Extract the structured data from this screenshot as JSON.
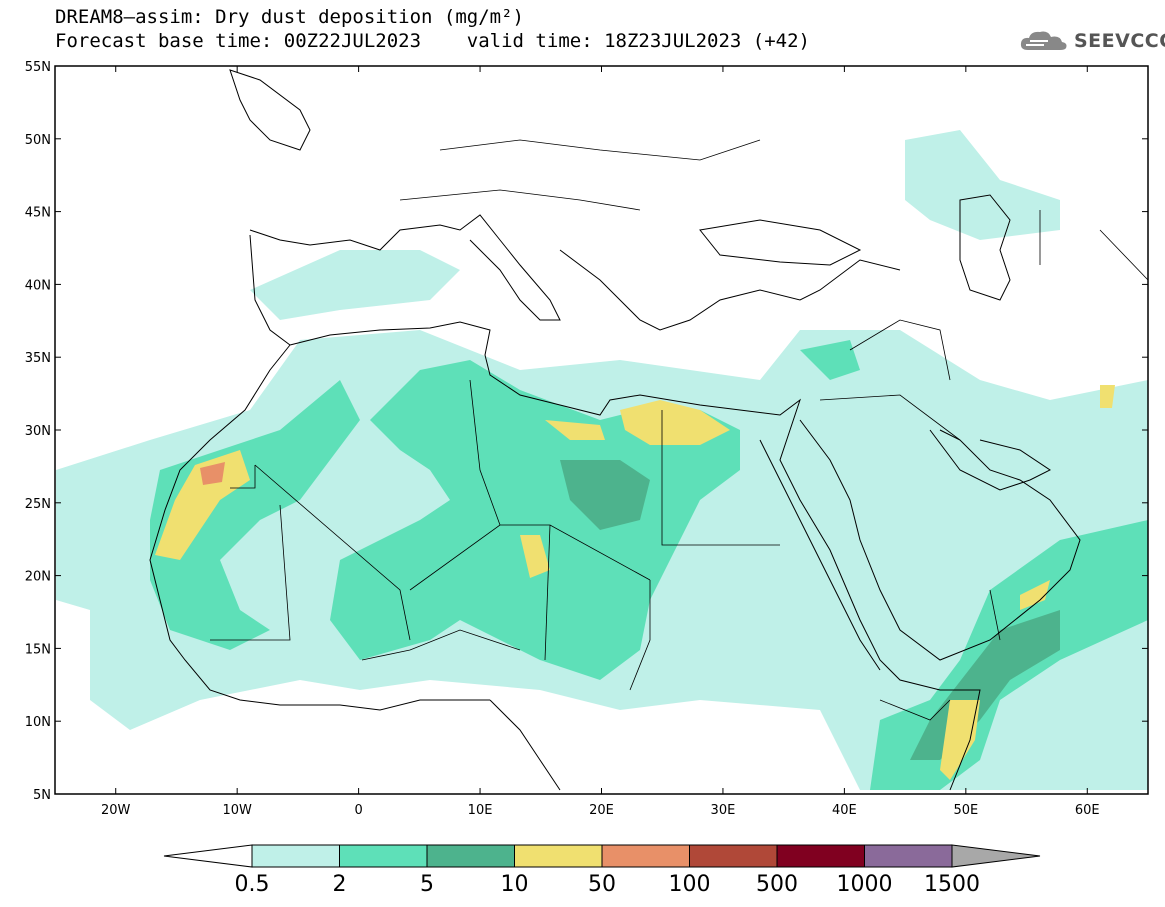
{
  "title": {
    "line1": "DREAM8–assim: Dry dust deposition (mg/m²)",
    "line2": "Forecast base time: 00Z22JUL2023    valid time: 18Z23JUL2023 (+42)"
  },
  "logo": {
    "text": "SEEVCCC",
    "icon": "cloud-icon"
  },
  "map": {
    "lon_range": [
      -25,
      65
    ],
    "lat_range": [
      5,
      55
    ],
    "lat_ticks": [
      {
        "value": 55,
        "label": "55N"
      },
      {
        "value": 50,
        "label": "50N"
      },
      {
        "value": 45,
        "label": "45N"
      },
      {
        "value": 40,
        "label": "40N"
      },
      {
        "value": 35,
        "label": "35N"
      },
      {
        "value": 30,
        "label": "30N"
      },
      {
        "value": 25,
        "label": "25N"
      },
      {
        "value": 20,
        "label": "20N"
      },
      {
        "value": 15,
        "label": "15N"
      },
      {
        "value": 10,
        "label": "10N"
      },
      {
        "value": 5,
        "label": "5N"
      }
    ],
    "lon_ticks": [
      {
        "value": -20,
        "label": "20W"
      },
      {
        "value": -10,
        "label": "10W"
      },
      {
        "value": 0,
        "label": "0"
      },
      {
        "value": 10,
        "label": "10E"
      },
      {
        "value": 20,
        "label": "20E"
      },
      {
        "value": 30,
        "label": "30E"
      },
      {
        "value": 40,
        "label": "40E"
      },
      {
        "value": 50,
        "label": "50E"
      },
      {
        "value": 60,
        "label": "60E"
      }
    ]
  },
  "colorbar": {
    "levels": [
      "0.5",
      "2",
      "5",
      "10",
      "50",
      "100",
      "500",
      "1000",
      "1500"
    ],
    "colors": [
      "#ffffff",
      "#bff0e8",
      "#5ee0b8",
      "#4db38d",
      "#f0e070",
      "#e89068",
      "#b04838",
      "#800020",
      "#8a6a9a",
      "#a8a8a8"
    ]
  }
}
